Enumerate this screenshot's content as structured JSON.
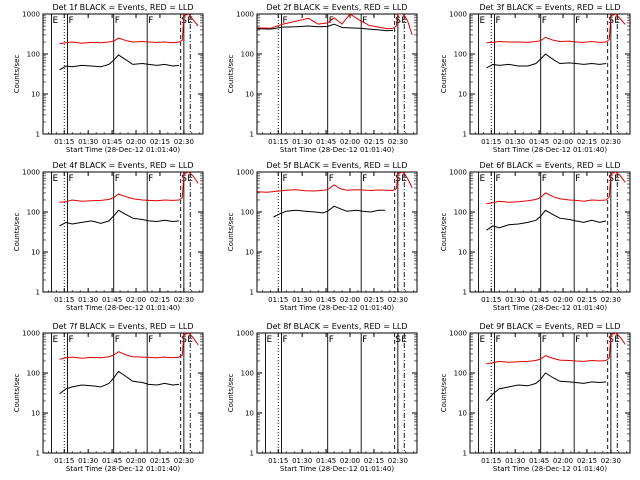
{
  "colors": {
    "events": "#000000",
    "lld": "#e00000",
    "axis": "#000000",
    "background": "#ffffff"
  },
  "common": {
    "ylabel": "Counts/sec",
    "xlabel": "Start Time (28-Dec-12 01:01:40)",
    "x_ticks": [
      "01:15",
      "01:30",
      "01:45",
      "02:00",
      "02:15",
      "02:30"
    ],
    "y_ticks": [
      "1",
      "10",
      "100",
      "1000"
    ],
    "flag_labels": {
      "eclipse": "E",
      "fov": "F",
      "saa": "S"
    }
  },
  "chart_data": [
    {
      "type": "line",
      "title": "Det 1f BLACK = Events, RED = LLD",
      "x_unit": "minutes_after_00:00",
      "xlim": [
        61.67,
        162
      ],
      "ylim": [
        1,
        1000
      ],
      "yscale": "log",
      "eclipse_start": 67,
      "dotted": 75,
      "fov": [
        77,
        106,
        127
      ],
      "dashdot": 154,
      "dashed": 148,
      "saa": 149,
      "double_line": 150,
      "series": [
        {
          "name": "Events",
          "x": [
            72,
            76,
            80,
            86,
            92,
            98,
            103,
            106,
            109,
            114,
            118,
            124,
            128,
            133,
            138,
            143,
            147
          ],
          "values": [
            40,
            50,
            48,
            52,
            50,
            48,
            55,
            70,
            95,
            70,
            55,
            58,
            55,
            52,
            55,
            50,
            52
          ]
        },
        {
          "name": "LLD",
          "x": [
            72,
            76,
            80,
            86,
            92,
            98,
            103,
            106,
            109,
            114,
            118,
            124,
            128,
            133,
            138,
            143,
            147,
            149,
            150,
            153,
            156,
            159
          ],
          "values": [
            180,
            190,
            200,
            185,
            195,
            190,
            200,
            210,
            250,
            215,
            200,
            205,
            200,
            195,
            200,
            190,
            200,
            220,
            900,
            1000,
            700,
            500
          ]
        }
      ]
    },
    {
      "type": "line",
      "title": "Det 2f BLACK = Events, RED = LLD",
      "x_unit": "minutes_after_00:00",
      "xlim": [
        61.67,
        162
      ],
      "ylim": [
        1,
        1000
      ],
      "yscale": "log",
      "eclipse_start": null,
      "dotted": 75,
      "fov": [
        77,
        106,
        127
      ],
      "dashdot": 154,
      "dashed": 148,
      "saa": 149,
      "double_line": 150,
      "series": [
        {
          "name": "Events",
          "x": [
            62,
            70,
            78,
            86,
            94,
            100,
            106,
            110,
            115,
            120,
            126,
            132,
            138,
            143,
            147
          ],
          "values": [
            430,
            420,
            470,
            480,
            500,
            480,
            490,
            560,
            460,
            450,
            440,
            420,
            400,
            380,
            390
          ]
        },
        {
          "name": "LLD",
          "x": [
            62,
            70,
            78,
            86,
            94,
            100,
            106,
            110,
            115,
            120,
            126,
            132,
            138,
            143,
            147,
            149,
            150,
            153,
            156,
            159
          ],
          "values": [
            450,
            440,
            560,
            660,
            780,
            560,
            600,
            800,
            560,
            1000,
            700,
            520,
            470,
            430,
            440,
            500,
            1000,
            1000,
            700,
            300
          ]
        }
      ]
    },
    {
      "type": "line",
      "title": "Det 3f BLACK = Events, RED = LLD",
      "x_unit": "minutes_after_00:00",
      "xlim": [
        61.67,
        162
      ],
      "ylim": [
        1,
        1000
      ],
      "yscale": "log",
      "eclipse_start": 67,
      "dotted": 75,
      "fov": [
        77,
        106,
        127
      ],
      "dashdot": 154,
      "dashed": 148,
      "saa": 149,
      "double_line": 150,
      "series": [
        {
          "name": "Events",
          "x": [
            72,
            76,
            80,
            86,
            92,
            98,
            103,
            106,
            109,
            114,
            118,
            124,
            128,
            133,
            138,
            143,
            147
          ],
          "values": [
            45,
            55,
            52,
            55,
            50,
            50,
            58,
            75,
            100,
            72,
            58,
            60,
            58,
            55,
            58,
            55,
            58
          ]
        },
        {
          "name": "LLD",
          "x": [
            72,
            76,
            80,
            86,
            92,
            98,
            103,
            106,
            109,
            114,
            118,
            124,
            128,
            133,
            138,
            143,
            147,
            149,
            150,
            153,
            156,
            159
          ],
          "values": [
            190,
            195,
            205,
            200,
            200,
            195,
            205,
            215,
            260,
            220,
            205,
            210,
            200,
            195,
            205,
            195,
            200,
            230,
            900,
            1000,
            750,
            550
          ]
        }
      ]
    },
    {
      "type": "line",
      "title": "Det 4f BLACK = Events, RED = LLD",
      "x_unit": "minutes_after_00:00",
      "xlim": [
        61.67,
        162
      ],
      "ylim": [
        1,
        1000
      ],
      "yscale": "log",
      "eclipse_start": 67,
      "dotted": 75,
      "fov": [
        77,
        106,
        127
      ],
      "dashdot": 154,
      "dashed": 148,
      "saa": 149,
      "double_line": 150,
      "series": [
        {
          "name": "Events",
          "x": [
            72,
            76,
            80,
            86,
            92,
            98,
            103,
            106,
            109,
            114,
            118,
            124,
            128,
            133,
            138,
            143,
            147
          ],
          "values": [
            45,
            55,
            50,
            55,
            60,
            52,
            60,
            80,
            110,
            85,
            70,
            65,
            60,
            58,
            62,
            58,
            60
          ]
        },
        {
          "name": "LLD",
          "x": [
            72,
            76,
            80,
            86,
            92,
            98,
            103,
            106,
            109,
            114,
            118,
            124,
            128,
            133,
            138,
            143,
            147,
            149,
            150,
            153,
            156,
            159
          ],
          "values": [
            175,
            180,
            200,
            185,
            190,
            195,
            205,
            230,
            280,
            240,
            215,
            200,
            195,
            190,
            200,
            195,
            200,
            230,
            900,
            1000,
            780,
            520
          ]
        }
      ]
    },
    {
      "type": "line",
      "title": "Det 5f BLACK = Events, RED = LLD",
      "x_unit": "minutes_after_00:00",
      "xlim": [
        61.67,
        162
      ],
      "ylim": [
        1,
        1000
      ],
      "yscale": "log",
      "eclipse_start": null,
      "dotted": 75,
      "fov": [
        77,
        106,
        127
      ],
      "dashdot": 154,
      "dashed": 148,
      "saa": 149,
      "double_line": 150,
      "series": [
        {
          "name": "Events",
          "x": [
            72,
            76,
            80,
            86,
            92,
            98,
            103,
            106,
            110,
            114,
            118,
            124,
            128,
            133,
            138,
            142
          ],
          "values": [
            75,
            90,
            105,
            110,
            105,
            100,
            95,
            105,
            140,
            120,
            105,
            110,
            105,
            100,
            110,
            110
          ]
        },
        {
          "name": "LLD",
          "x": [
            62,
            68,
            74,
            80,
            86,
            92,
            98,
            103,
            106,
            110,
            114,
            118,
            124,
            128,
            133,
            138,
            143,
            147,
            149,
            150,
            153,
            156,
            159
          ],
          "values": [
            320,
            310,
            330,
            350,
            360,
            340,
            335,
            350,
            360,
            480,
            380,
            350,
            360,
            355,
            345,
            355,
            350,
            345,
            380,
            900,
            1000,
            700,
            400
          ]
        }
      ]
    },
    {
      "type": "line",
      "title": "Det 6f BLACK = Events, RED = LLD",
      "x_unit": "minutes_after_00:00",
      "xlim": [
        61.67,
        162
      ],
      "ylim": [
        1,
        1000
      ],
      "yscale": "log",
      "eclipse_start": 67,
      "dotted": 75,
      "fov": [
        77,
        106,
        127
      ],
      "dashdot": 154,
      "dashed": 148,
      "saa": 149,
      "double_line": 150,
      "series": [
        {
          "name": "Events",
          "x": [
            72,
            76,
            80,
            86,
            92,
            98,
            103,
            106,
            109,
            114,
            118,
            124,
            128,
            133,
            138,
            143,
            147
          ],
          "values": [
            35,
            45,
            40,
            48,
            50,
            55,
            62,
            78,
            110,
            85,
            70,
            65,
            60,
            55,
            62,
            55,
            60
          ]
        },
        {
          "name": "LLD",
          "x": [
            72,
            76,
            80,
            86,
            92,
            98,
            103,
            106,
            109,
            114,
            118,
            124,
            128,
            133,
            138,
            143,
            147,
            149,
            150,
            153,
            156,
            159
          ],
          "values": [
            160,
            170,
            185,
            175,
            180,
            190,
            205,
            230,
            300,
            240,
            215,
            200,
            195,
            185,
            200,
            195,
            200,
            240,
            900,
            1000,
            800,
            550
          ]
        }
      ]
    },
    {
      "type": "line",
      "title": "Det 7f BLACK = Events, RED = LLD",
      "x_unit": "minutes_after_00:00",
      "xlim": [
        61.67,
        162
      ],
      "ylim": [
        1,
        1000
      ],
      "yscale": "log",
      "eclipse_start": 67,
      "dotted": 75,
      "fov": [
        77,
        106,
        127
      ],
      "dashdot": 154,
      "dashed": 148,
      "saa": 149,
      "double_line": 150,
      "series": [
        {
          "name": "Events",
          "x": [
            72,
            76,
            80,
            86,
            92,
            98,
            103,
            106,
            109,
            114,
            118,
            124,
            128,
            133,
            138,
            143,
            147
          ],
          "values": [
            30,
            40,
            45,
            50,
            48,
            45,
            55,
            75,
            110,
            80,
            62,
            58,
            52,
            50,
            55,
            50,
            52
          ]
        },
        {
          "name": "LLD",
          "x": [
            72,
            76,
            80,
            86,
            92,
            98,
            103,
            106,
            109,
            114,
            118,
            124,
            128,
            133,
            138,
            143,
            147,
            149,
            150,
            153,
            156,
            159
          ],
          "values": [
            220,
            240,
            250,
            235,
            245,
            240,
            255,
            280,
            340,
            280,
            255,
            250,
            245,
            240,
            250,
            240,
            250,
            280,
            900,
            1000,
            750,
            500
          ]
        }
      ]
    },
    {
      "type": "line",
      "title": "Det 8f BLACK = Events, RED = LLD",
      "x_unit": "minutes_after_00:00",
      "xlim": [
        61.67,
        162
      ],
      "ylim": [
        1,
        1000
      ],
      "yscale": "log",
      "eclipse_start": 67,
      "dotted": 75,
      "fov": [
        77,
        106,
        127
      ],
      "dashdot": 154,
      "dashed": 148,
      "saa": 149,
      "double_line": 150,
      "series": []
    },
    {
      "type": "line",
      "title": "Det 9f BLACK = Events, RED = LLD",
      "x_unit": "minutes_after_00:00",
      "xlim": [
        61.67,
        162
      ],
      "ylim": [
        1,
        1000
      ],
      "yscale": "log",
      "eclipse_start": 67,
      "dotted": 75,
      "fov": [
        77,
        106,
        127
      ],
      "dashdot": 154,
      "dashed": 148,
      "saa": 149,
      "double_line": 150,
      "series": [
        {
          "name": "Events",
          "x": [
            72,
            76,
            80,
            86,
            92,
            98,
            103,
            106,
            109,
            114,
            118,
            124,
            128,
            133,
            138,
            143,
            147
          ],
          "values": [
            20,
            30,
            40,
            45,
            50,
            48,
            55,
            70,
            100,
            75,
            62,
            60,
            58,
            55,
            60,
            58,
            60
          ]
        },
        {
          "name": "LLD",
          "x": [
            72,
            76,
            80,
            86,
            92,
            98,
            103,
            106,
            109,
            114,
            118,
            124,
            128,
            133,
            138,
            143,
            147,
            149,
            150,
            153,
            156,
            159
          ],
          "values": [
            170,
            180,
            195,
            185,
            190,
            195,
            205,
            225,
            270,
            230,
            210,
            205,
            200,
            195,
            205,
            200,
            205,
            240,
            900,
            1000,
            780,
            520
          ]
        }
      ]
    }
  ]
}
